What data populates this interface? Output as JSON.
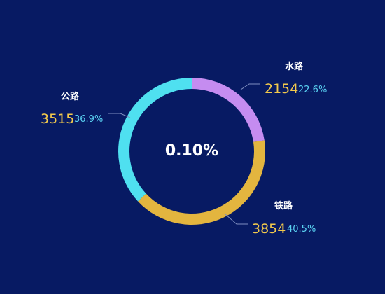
{
  "chart_data": {
    "type": "pie",
    "center_label": "0.10%",
    "slices": [
      {
        "name": "水路",
        "value": 2154,
        "percent": "22.6%",
        "color": "#c58cf0"
      },
      {
        "name": "铁路",
        "value": 3854,
        "percent": "40.5%",
        "color": "#e3b53f"
      },
      {
        "name": "公路",
        "value": 3515,
        "percent": "36.9%",
        "color": "#4fe0f0"
      }
    ],
    "colors": {
      "background": "#071a63",
      "value_text": "#f2c94c",
      "percent_text": "#5ad2f2",
      "label_text": "#ffffff",
      "leader_line": "#7f8fc0"
    }
  }
}
